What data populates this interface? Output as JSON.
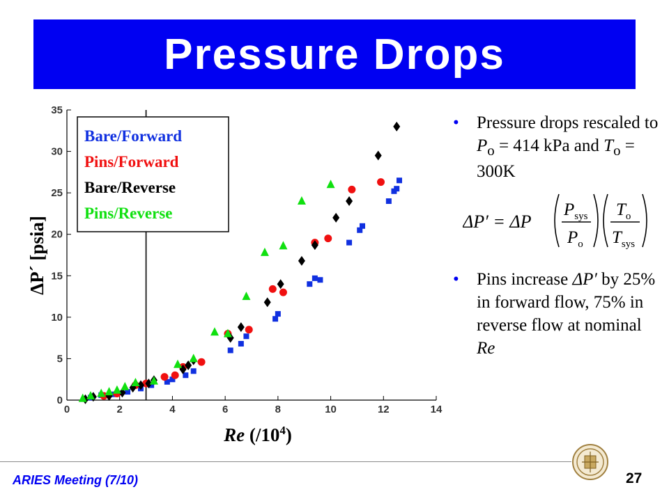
{
  "slide": {
    "title": "Pressure Drops",
    "footer": "ARIES Meeting (7/10)",
    "page_number": "27"
  },
  "bullets": [
    {
      "parts": [
        "Pressure drops rescaled to ",
        "P",
        "o",
        " = 414 kPa and ",
        "T",
        "o",
        " = 300K"
      ]
    },
    {
      "parts": [
        "Pins increase ",
        "ΔP′",
        " by 25% in forward flow, 75% in reverse flow at nominal ",
        "Re"
      ]
    }
  ],
  "formula": {
    "lhs": "ΔP′ = ΔP",
    "num1": "P",
    "num1_sub": "sys",
    "den1": "P",
    "den1_sub": "o",
    "num2": "T",
    "num2_sub": "o",
    "den2": "T",
    "den2_sub": "sys"
  },
  "chart_data": {
    "type": "scatter",
    "ylabel": "ΔP´ [psia]",
    "xlabel_main": "Re",
    "xlabel_unit": "(/10",
    "xlabel_exp": "4",
    "xlabel_close": ")",
    "xlim": [
      0,
      14
    ],
    "ylim": [
      0,
      35
    ],
    "xticks": [
      0,
      2,
      4,
      6,
      8,
      10,
      12,
      14
    ],
    "yticks": [
      0,
      5,
      10,
      15,
      20,
      25,
      30,
      35
    ],
    "vline_x": 3.0,
    "legend_position": "top-left",
    "series": [
      {
        "name": "Bare/Forward",
        "color": "#1030e0",
        "marker": "square",
        "x": [
          0.9,
          1.3,
          1.8,
          2.3,
          2.8,
          3.2,
          3.8,
          4.0,
          4.5,
          4.8,
          6.2,
          6.6,
          6.8,
          7.9,
          8.0,
          9.2,
          9.4,
          9.6,
          10.7,
          11.1,
          11.2,
          12.2,
          12.4,
          12.5,
          12.6
        ],
        "y": [
          0.3,
          0.6,
          0.7,
          1.0,
          1.4,
          1.8,
          2.2,
          2.5,
          3.0,
          3.5,
          6.0,
          6.8,
          7.7,
          9.8,
          10.4,
          14.0,
          14.7,
          14.5,
          19.0,
          20.5,
          21.0,
          24.0,
          25.2,
          25.5,
          26.5
        ]
      },
      {
        "name": "Pins/Forward",
        "color": "#f01010",
        "marker": "circle",
        "x": [
          1.4,
          1.9,
          2.6,
          3.0,
          3.7,
          4.1,
          4.4,
          5.1,
          6.1,
          6.9,
          7.8,
          8.2,
          9.4,
          9.9,
          10.8,
          11.9
        ],
        "y": [
          0.5,
          0.8,
          1.8,
          2.0,
          2.8,
          3.0,
          4.0,
          4.6,
          8.0,
          8.5,
          13.4,
          13.0,
          19.0,
          19.5,
          25.4,
          26.3
        ]
      },
      {
        "name": "Bare/Reverse",
        "color": "#000000",
        "marker": "diamond",
        "x": [
          0.7,
          1.0,
          1.6,
          2.1,
          2.5,
          2.8,
          3.1,
          3.3,
          4.4,
          4.6,
          4.8,
          6.2,
          6.6,
          7.6,
          8.1,
          8.9,
          9.4,
          10.2,
          10.7,
          11.8,
          12.5
        ],
        "y": [
          0.1,
          0.4,
          0.5,
          0.9,
          1.5,
          1.8,
          2.0,
          2.4,
          3.7,
          4.2,
          4.8,
          7.5,
          8.8,
          11.8,
          14.0,
          16.8,
          18.7,
          22.0,
          24.0,
          29.5,
          33.0
        ]
      },
      {
        "name": "Pins/Reverse",
        "color": "#10e010",
        "marker": "triangle",
        "x": [
          0.6,
          0.9,
          1.3,
          1.6,
          1.9,
          2.2,
          2.6,
          3.3,
          4.2,
          4.8,
          5.6,
          6.1,
          6.8,
          7.5,
          8.2,
          8.9,
          10.0
        ],
        "y": [
          0.2,
          0.5,
          0.8,
          1.0,
          1.2,
          1.6,
          2.1,
          2.3,
          4.3,
          5.0,
          8.2,
          8.0,
          12.5,
          17.8,
          18.6,
          24.0,
          26.0
        ]
      }
    ]
  }
}
